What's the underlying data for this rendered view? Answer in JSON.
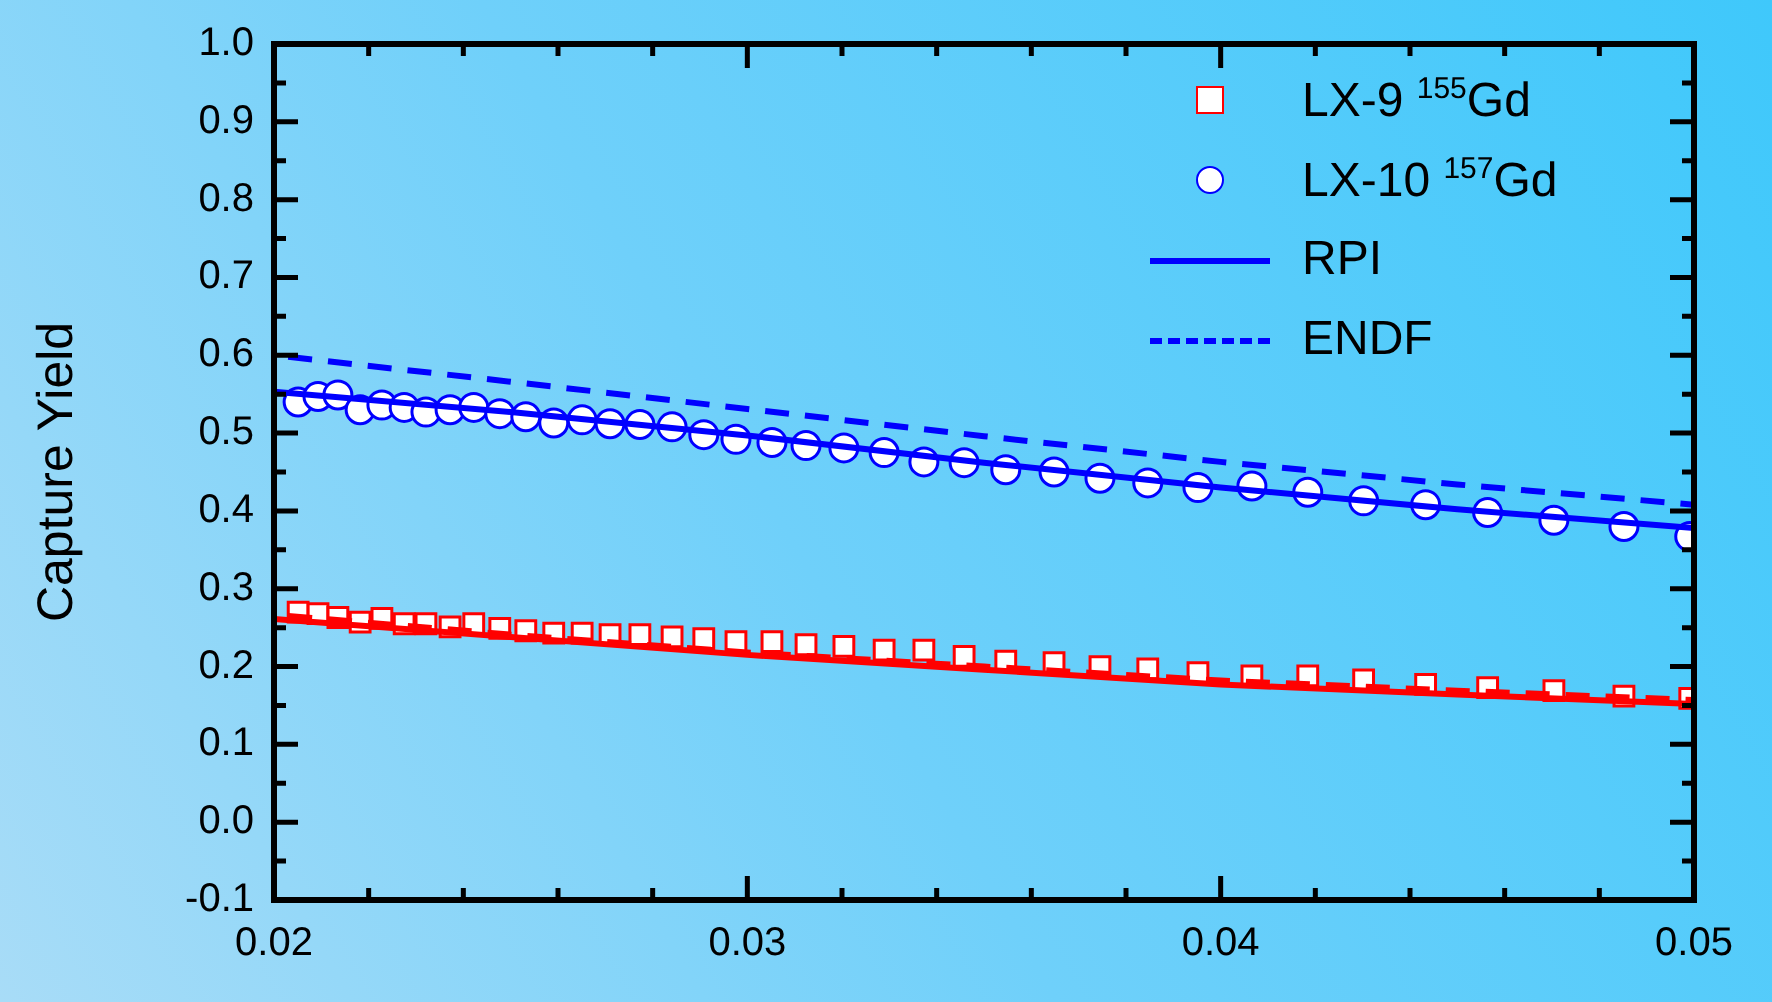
{
  "chart_data": {
    "type": "scatter",
    "ylabel": "Capture Yield",
    "legend": "top right",
    "grid": false,
    "xlim": [
      0.02,
      0.05
    ],
    "xticks": [
      0.02,
      0.03,
      0.04,
      0.05
    ],
    "ylim": [
      -0.1,
      1.0
    ],
    "yticks": [
      {
        "value": -0.1,
        "label": "-0.1"
      },
      {
        "value": 0,
        "label": "0.0"
      },
      {
        "value": 0.1,
        "label": "0.1"
      },
      {
        "value": 0.2,
        "label": "0.2"
      },
      {
        "value": 0.3,
        "label": "0.3"
      },
      {
        "value": 0.4,
        "label": "0.4"
      },
      {
        "value": 0.5,
        "label": "0.5"
      },
      {
        "value": 0.6,
        "label": "0.6"
      },
      {
        "value": 0.7,
        "label": "0.7"
      },
      {
        "value": 0.8,
        "label": "0.8"
      },
      {
        "value": 0.9,
        "label": "0.9"
      },
      {
        "value": 1.0,
        "label": "1.0"
      }
    ],
    "series": [
      {
        "name": "LX-9 $^{155}$Gd",
        "type": "scatter",
        "marker": "square",
        "color": "#ff0000",
        "x": [
          0.02051,
          0.02093,
          0.02135,
          0.02182,
          0.02228,
          0.02275,
          0.02321,
          0.02372,
          0.02422,
          0.02477,
          0.02532,
          0.02591,
          0.02651,
          0.0271,
          0.02773,
          0.02841,
          0.02908,
          0.02976,
          0.03052,
          0.03124,
          0.03204,
          0.03289,
          0.03373,
          0.03458,
          0.03546,
          0.03648,
          0.03745,
          0.03846,
          0.03952,
          0.04066,
          0.04184,
          0.04302,
          0.04433,
          0.04564,
          0.04704,
          0.04852,
          0.04991
        ],
        "values": [
          0.27,
          0.268,
          0.263,
          0.257,
          0.262,
          0.255,
          0.255,
          0.251,
          0.255,
          0.249,
          0.246,
          0.243,
          0.243,
          0.241,
          0.241,
          0.238,
          0.236,
          0.232,
          0.232,
          0.228,
          0.226,
          0.221,
          0.221,
          0.213,
          0.207,
          0.205,
          0.2,
          0.197,
          0.192,
          0.188,
          0.188,
          0.183,
          0.177,
          0.173,
          0.169,
          0.162,
          0.159
        ]
      },
      {
        "name": "LX-10 $^{157}$Gd",
        "type": "scatter",
        "marker": "circle",
        "color": "#0000ff",
        "x": [
          0.02051,
          0.02093,
          0.02135,
          0.02182,
          0.02228,
          0.02275,
          0.02321,
          0.02372,
          0.02422,
          0.02477,
          0.02532,
          0.02591,
          0.02651,
          0.0271,
          0.02773,
          0.02841,
          0.02908,
          0.02976,
          0.03052,
          0.03124,
          0.03204,
          0.03289,
          0.03373,
          0.03458,
          0.03546,
          0.03648,
          0.03745,
          0.03846,
          0.03952,
          0.04066,
          0.04184,
          0.04302,
          0.04433,
          0.04564,
          0.04704,
          0.04852,
          0.04991
        ],
        "values": [
          0.54,
          0.547,
          0.549,
          0.53,
          0.536,
          0.533,
          0.527,
          0.53,
          0.533,
          0.525,
          0.521,
          0.513,
          0.517,
          0.512,
          0.511,
          0.508,
          0.498,
          0.492,
          0.488,
          0.484,
          0.481,
          0.475,
          0.463,
          0.462,
          0.453,
          0.45,
          0.442,
          0.436,
          0.43,
          0.432,
          0.424,
          0.413,
          0.408,
          0.398,
          0.388,
          0.38,
          0.367
        ]
      },
      {
        "name": "RPI",
        "type": "line",
        "marker": "none",
        "line_style": "solid",
        "color": "#0000ff",
        "x": [
          0.02,
          0.025,
          0.03,
          0.035,
          0.04,
          0.045,
          0.05
        ],
        "values": [
          0.553,
          0.527,
          0.497,
          0.462,
          0.43,
          0.402,
          0.378
        ]
      },
      {
        "name": "ENDF",
        "type": "line",
        "marker": "none",
        "line_style": "dashed",
        "color": "#0000ff",
        "x": [
          0.0203,
          0.025,
          0.03,
          0.035,
          0.04,
          0.045,
          0.05
        ],
        "values": [
          0.598,
          0.566,
          0.531,
          0.496,
          0.463,
          0.434,
          0.408
        ]
      },
      {
        "type": "line",
        "marker": "none",
        "line_style": "solid",
        "color": "#ff0000",
        "x": [
          0.02,
          0.025,
          0.03,
          0.035,
          0.04,
          0.045,
          0.05
        ],
        "values": [
          0.261,
          0.238,
          0.215,
          0.196,
          0.177,
          0.164,
          0.152
        ]
      },
      {
        "type": "line",
        "marker": "none",
        "line_style": "dashed",
        "color": "#ff0000",
        "x": [
          0.0203,
          0.025,
          0.03,
          0.035,
          0.04,
          0.045,
          0.05
        ],
        "values": [
          0.265,
          0.241,
          0.218,
          0.2,
          0.182,
          0.169,
          0.157
        ]
      }
    ]
  }
}
